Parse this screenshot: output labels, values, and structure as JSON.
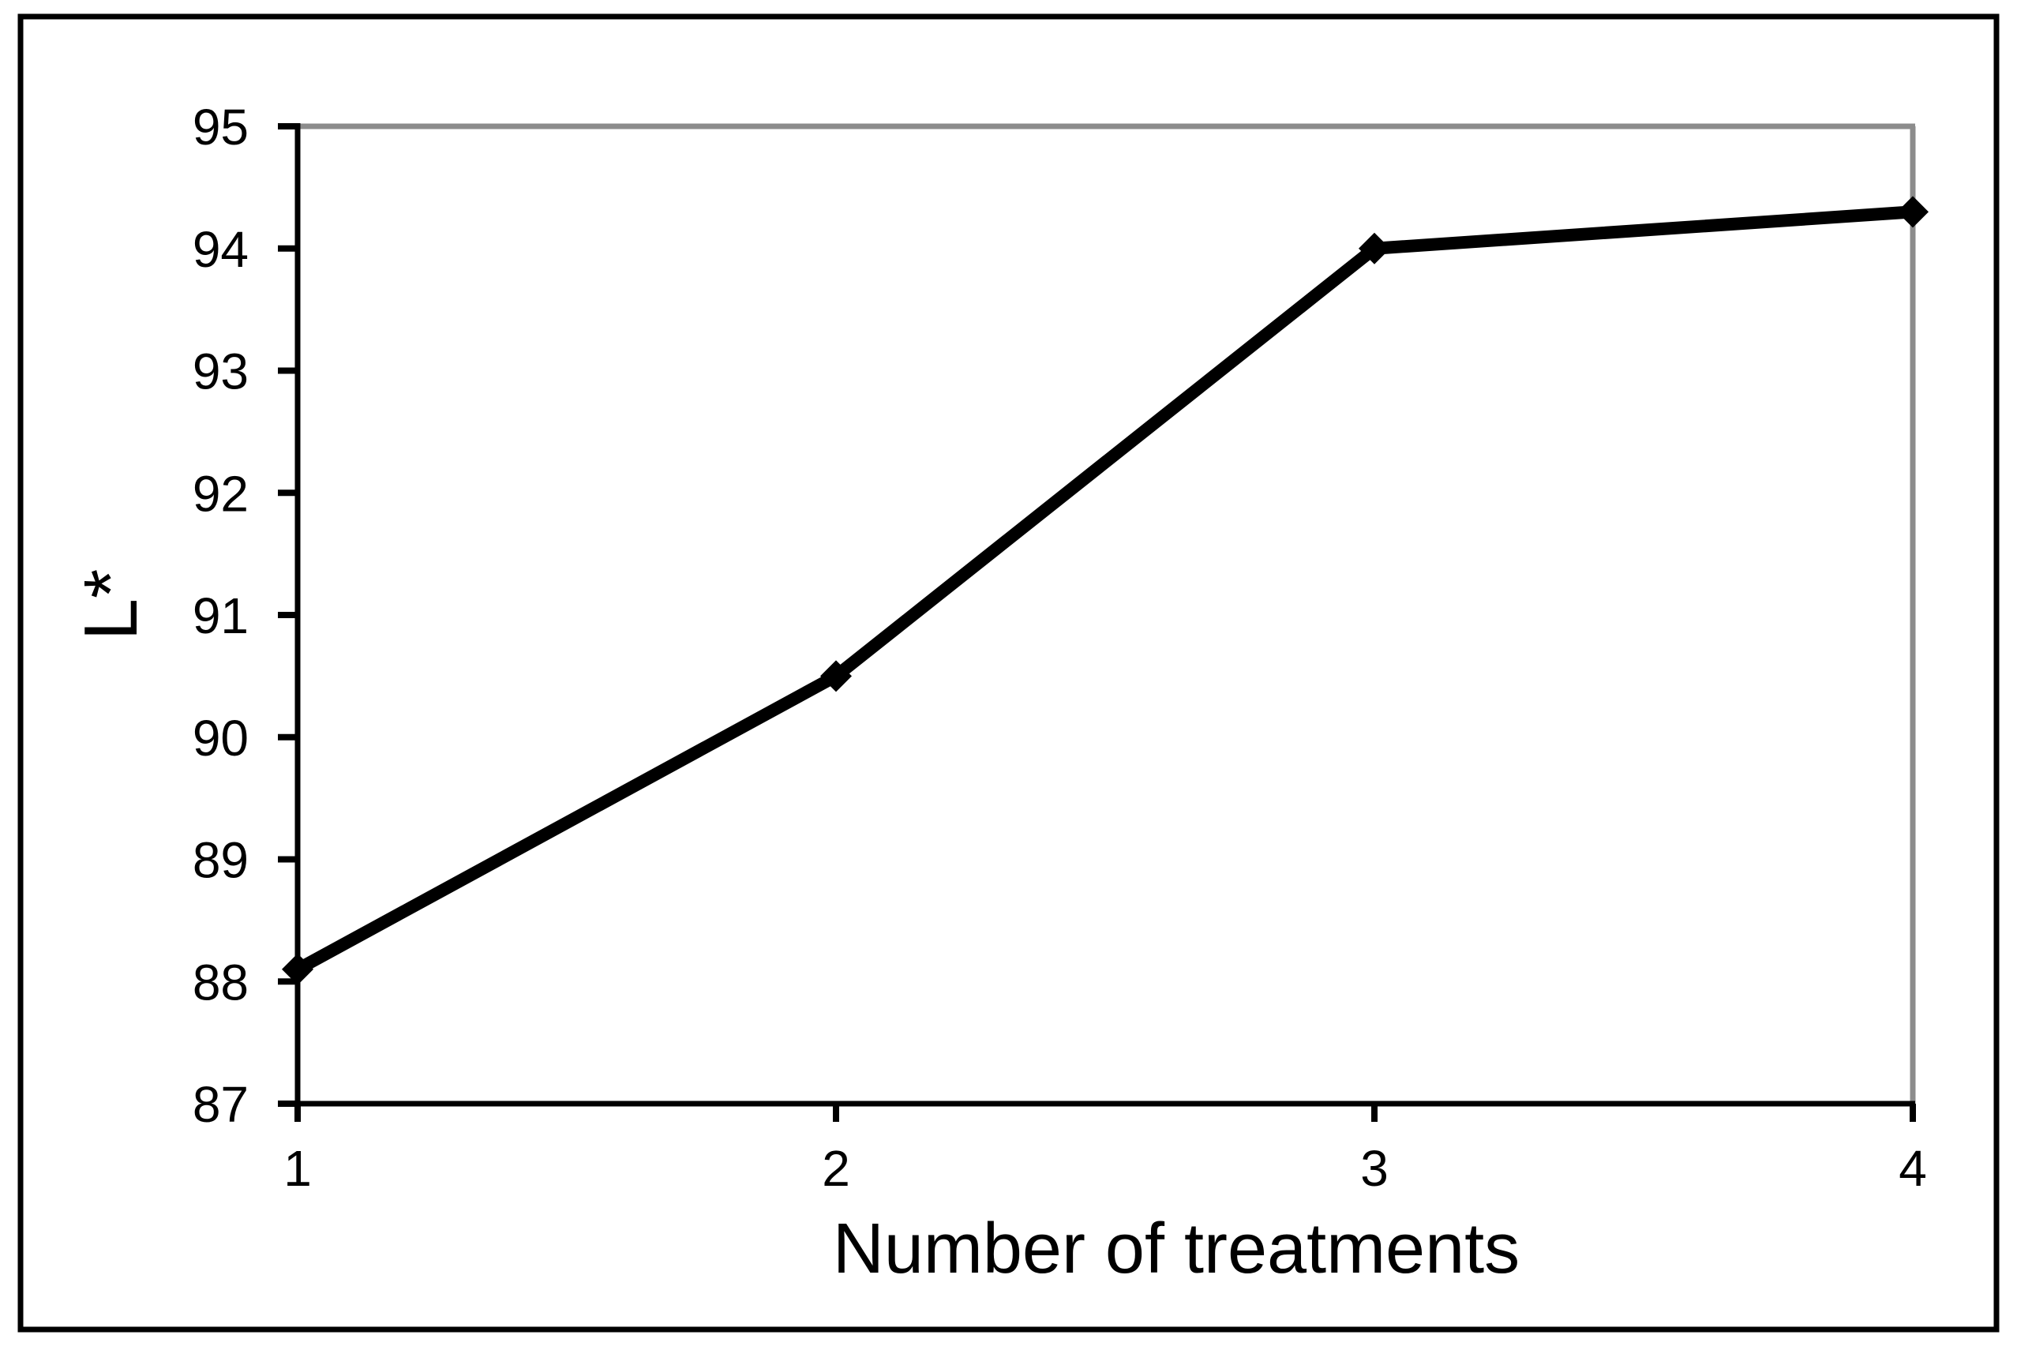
{
  "chart_data": {
    "type": "line",
    "title": "",
    "xlabel": "Number of treatments",
    "ylabel": "L*",
    "x": [
      1,
      2,
      3,
      4
    ],
    "series": [
      {
        "name": "L*",
        "values": [
          88.1,
          90.5,
          94.0,
          94.3
        ]
      }
    ],
    "xlim": [
      1,
      4
    ],
    "ylim": [
      87,
      95
    ],
    "x_ticks": [
      "1",
      "2",
      "3",
      "4"
    ],
    "y_ticks": [
      "87",
      "88",
      "89",
      "90",
      "91",
      "92",
      "93",
      "94",
      "95"
    ],
    "grid": "off",
    "legend": "none",
    "marker": "diamond",
    "line_color": "#000000",
    "marker_color": "#000000",
    "axis_color": "#000000",
    "tick_color": "#000000",
    "plot_frame_color": "#8c8c8c",
    "figure_border_color": "#000000",
    "background_color": "#ffffff"
  }
}
